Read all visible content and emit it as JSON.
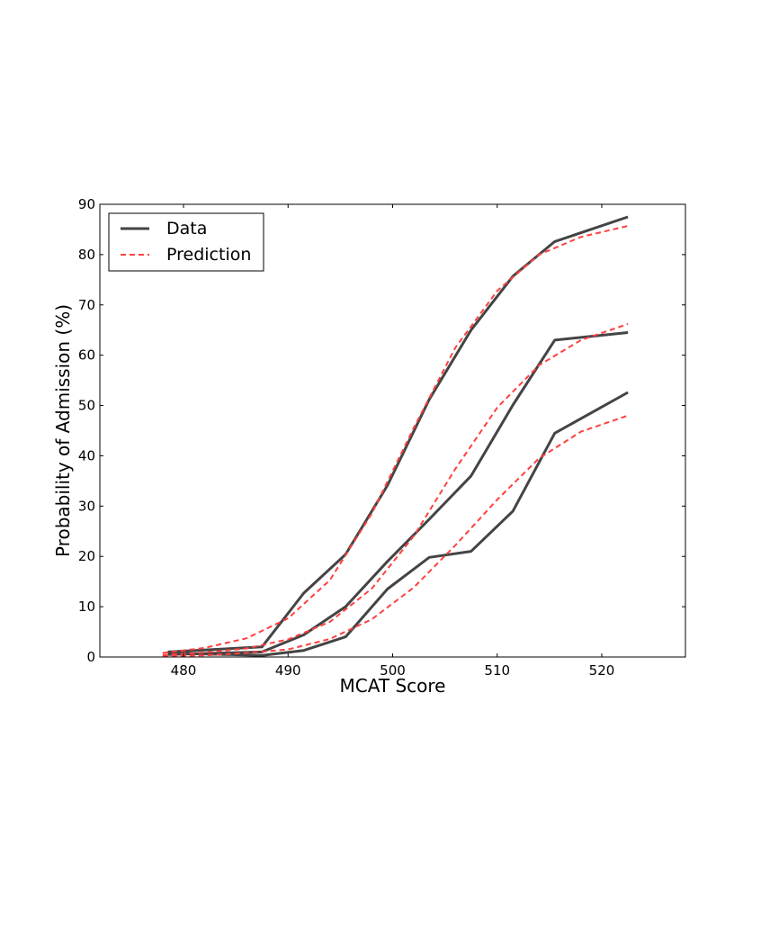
{
  "chart_data": {
    "type": "line",
    "title": "",
    "xlabel": "MCAT Score",
    "ylabel": "Probability of Admission (%)",
    "xlim": [
      472,
      528
    ],
    "ylim": [
      0,
      90
    ],
    "x_ticks": [
      480,
      490,
      500,
      510,
      520
    ],
    "y_ticks": [
      0,
      10,
      20,
      30,
      40,
      50,
      60,
      70,
      80,
      90
    ],
    "grid": false,
    "legend": {
      "position": "top-left",
      "entries": [
        {
          "label": "Data",
          "style": "solid",
          "color": "#444444"
        },
        {
          "label": "Prediction",
          "style": "dashed",
          "color": "#ff4040"
        }
      ]
    },
    "series": [
      {
        "group": "Data",
        "style": "solid",
        "color": "#444444",
        "x": [
          478.5,
          487.5,
          491.5,
          495.5,
          499.5,
          503.5,
          507.5,
          511.5,
          515.5,
          522.5
        ],
        "y": [
          1.0,
          2.0,
          12.7,
          20.4,
          34.1,
          51.2,
          65.0,
          75.7,
          82.6,
          87.5
        ]
      },
      {
        "group": "Data",
        "style": "solid",
        "color": "#444444",
        "x": [
          478.5,
          487.5,
          491.5,
          495.5,
          499.5,
          503.5,
          507.5,
          511.5,
          515.5,
          522.5
        ],
        "y": [
          0.5,
          1.0,
          4.4,
          10.0,
          19.0,
          27.4,
          36.0,
          50.1,
          63.0,
          64.5
        ]
      },
      {
        "group": "Data",
        "style": "solid",
        "color": "#444444",
        "x": [
          478.5,
          487.5,
          491.5,
          495.5,
          499.5,
          503.5,
          507.5,
          511.5,
          515.5,
          522.5
        ],
        "y": [
          0.8,
          0.3,
          1.3,
          4.0,
          13.5,
          19.8,
          21.0,
          29.0,
          44.5,
          52.6
        ]
      },
      {
        "group": "Prediction",
        "style": "dashed",
        "color": "#ff4040",
        "x": [
          478,
          482,
          486,
          490,
          494,
          498,
          502,
          506,
          510,
          514,
          518,
          522.5
        ],
        "y": [
          0.8,
          1.8,
          3.7,
          7.7,
          15.3,
          28.5,
          45.5,
          61.5,
          72.8,
          80.0,
          83.5,
          85.7
        ]
      },
      {
        "group": "Prediction",
        "style": "dashed",
        "color": "#ff4040",
        "x": [
          478,
          482,
          486,
          490,
          494,
          498,
          502,
          506,
          510,
          514,
          518,
          522.5
        ],
        "y": [
          0.4,
          0.9,
          1.7,
          3.5,
          7.0,
          13.6,
          24.0,
          37.4,
          49.6,
          58.0,
          63.0,
          66.2
        ]
      },
      {
        "group": "Prediction",
        "style": "dashed",
        "color": "#ff4040",
        "x": [
          478,
          482,
          486,
          490,
          494,
          498,
          502,
          506,
          510,
          514,
          518,
          522.5
        ],
        "y": [
          0.2,
          0.3,
          0.8,
          1.5,
          3.6,
          7.5,
          13.8,
          22.2,
          31.3,
          39.5,
          44.8,
          48.0
        ]
      }
    ]
  }
}
